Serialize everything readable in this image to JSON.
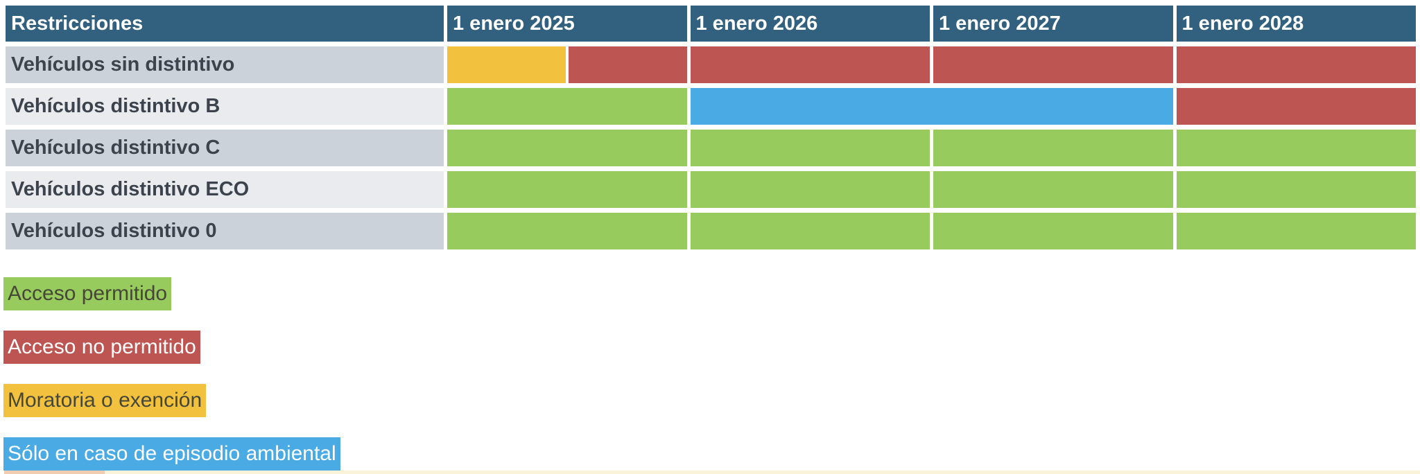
{
  "colors": {
    "header_bg": "#31617f",
    "header_text": "#ffffff",
    "row_label_bg_odd": "#ccd2da",
    "row_label_bg_even": "#e9ebef",
    "row_label_text": "#3d434d",
    "permitido": "#97cb5e",
    "no_permitido": "#bd5653",
    "moratoria": "#f2c23e",
    "episodio": "#49aae4",
    "legend_text_dark": "#474738",
    "legend_text_light": "#ffffff",
    "bottom_strip": "#faf3da",
    "bottom_strip_left": "#f0cdb0"
  },
  "table": {
    "header": [
      "Restricciones",
      "1 enero 2025",
      "1 enero 2026",
      "1 enero 2027",
      "1 enero 2028"
    ],
    "rows": [
      {
        "label": "Vehículos sin distintivo",
        "cells": [
          {
            "type": "split",
            "values": [
              "moratoria",
              "no_permitido"
            ]
          },
          {
            "type": "single",
            "value": "no_permitido"
          },
          {
            "type": "single",
            "value": "no_permitido"
          },
          {
            "type": "single",
            "value": "no_permitido"
          }
        ]
      },
      {
        "label": "Vehículos distintivo B",
        "cells": [
          {
            "type": "single",
            "value": "permitido"
          },
          {
            "type": "span2",
            "value": "episodio"
          },
          {
            "type": "single",
            "value": "no_permitido"
          }
        ]
      },
      {
        "label": "Vehículos distintivo C",
        "cells": [
          {
            "type": "single",
            "value": "permitido"
          },
          {
            "type": "single",
            "value": "permitido"
          },
          {
            "type": "single",
            "value": "permitido"
          },
          {
            "type": "single",
            "value": "permitido"
          }
        ]
      },
      {
        "label": "Vehículos distintivo ECO",
        "cells": [
          {
            "type": "single",
            "value": "permitido"
          },
          {
            "type": "single",
            "value": "permitido"
          },
          {
            "type": "single",
            "value": "permitido"
          },
          {
            "type": "single",
            "value": "permitido"
          }
        ]
      },
      {
        "label": "Vehículos distintivo 0",
        "cells": [
          {
            "type": "single",
            "value": "permitido"
          },
          {
            "type": "single",
            "value": "permitido"
          },
          {
            "type": "single",
            "value": "permitido"
          },
          {
            "type": "single",
            "value": "permitido"
          }
        ]
      }
    ]
  },
  "legend": [
    {
      "label": "Acceso permitido",
      "swatch": "permitido",
      "text": "dark"
    },
    {
      "label": "Acceso no permitido",
      "swatch": "no_permitido",
      "text": "light"
    },
    {
      "label": "Moratoria o exención",
      "swatch": "moratoria",
      "text": "dark"
    },
    {
      "label": "Sólo en caso de episodio ambiental",
      "swatch": "episodio",
      "text": "light"
    }
  ],
  "chart_data": {
    "type": "table",
    "title": "Restricciones",
    "columns": [
      "1 enero 2025",
      "1 enero 2026",
      "1 enero 2027",
      "1 enero 2028"
    ],
    "rows": [
      "Vehículos sin distintivo",
      "Vehículos distintivo B",
      "Vehículos distintivo C",
      "Vehículos distintivo ECO",
      "Vehículos distintivo 0"
    ],
    "values": [
      [
        "moratoria + no_permitido",
        "no_permitido",
        "no_permitido",
        "no_permitido"
      ],
      [
        "permitido",
        "episodio",
        "episodio",
        "no_permitido"
      ],
      [
        "permitido",
        "permitido",
        "permitido",
        "permitido"
      ],
      [
        "permitido",
        "permitido",
        "permitido",
        "permitido"
      ],
      [
        "permitido",
        "permitido",
        "permitido",
        "permitido"
      ]
    ],
    "legend_labels": {
      "permitido": "Acceso permitido",
      "no_permitido": "Acceso no permitido",
      "moratoria": "Moratoria o exención",
      "episodio": "Sólo en caso de episodio ambiental"
    },
    "legend_position": "below-left",
    "grid": false
  }
}
